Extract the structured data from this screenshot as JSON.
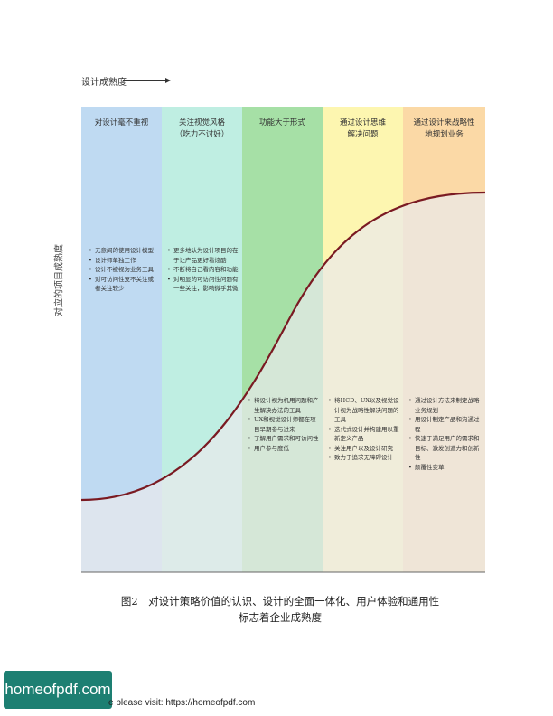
{
  "figure": {
    "x_axis_label": "设计成熟度",
    "y_axis_label": "对应的项目成熟度",
    "colors": [
      "#bfdaf2",
      "#bfeee2",
      "#a6e0a6",
      "#fdf6b0",
      "#fbd9a6"
    ],
    "columns": [
      {
        "title_lines": [
          "对设计毫不重视"
        ],
        "bullets": [
          "无意间的使用设计模型",
          "设计师单独工作",
          "设计不被视为业务工具",
          "对可访问性支不关注或者关注较少"
        ]
      },
      {
        "title_lines": [
          "关注视觉风格",
          "（吃力不讨好）"
        ],
        "bullets": [
          "更多地认为设计项目的在于让产品更好看炫酷",
          "不断将自己看内容和功能",
          "对明显的可访问性问题有一些关注，影响微乎其微"
        ]
      },
      {
        "title_lines": [
          "功能大于形式"
        ],
        "bullets": [
          "将设计视为机用问题和产生解决办法的工具",
          "UX和视觉设计师都在项目早期参与进来",
          "了解用户需求和可访问性",
          "用户参与度低"
        ]
      },
      {
        "title_lines": [
          "通过设计思维",
          "解决问题"
        ],
        "bullets": [
          "将HCD、UX以及视觉设计视为战略性解决问题的工具",
          "迭代式设计并构建用以重新定义产品",
          "关注用户以及设计研究",
          "致力于追求无障碍设计"
        ]
      },
      {
        "title_lines": [
          "通过设计来战略性",
          "地规划业务"
        ],
        "bullets": [
          "通过设计方法来制定战略业务规划",
          "用设计制定产品和沟通过程",
          "快速于满足用户的需求和目标、激发创造力和创新性",
          "颠覆性变革"
        ]
      }
    ]
  },
  "caption_lines": [
    "图2　对设计策略价值的认识、设计的全面一体化、用户体验和通用性",
    "标志着企业成熟度"
  ],
  "logo_text": "homeofpdf.com",
  "footer_text": "e please visit: https://homeofpdf.com"
}
